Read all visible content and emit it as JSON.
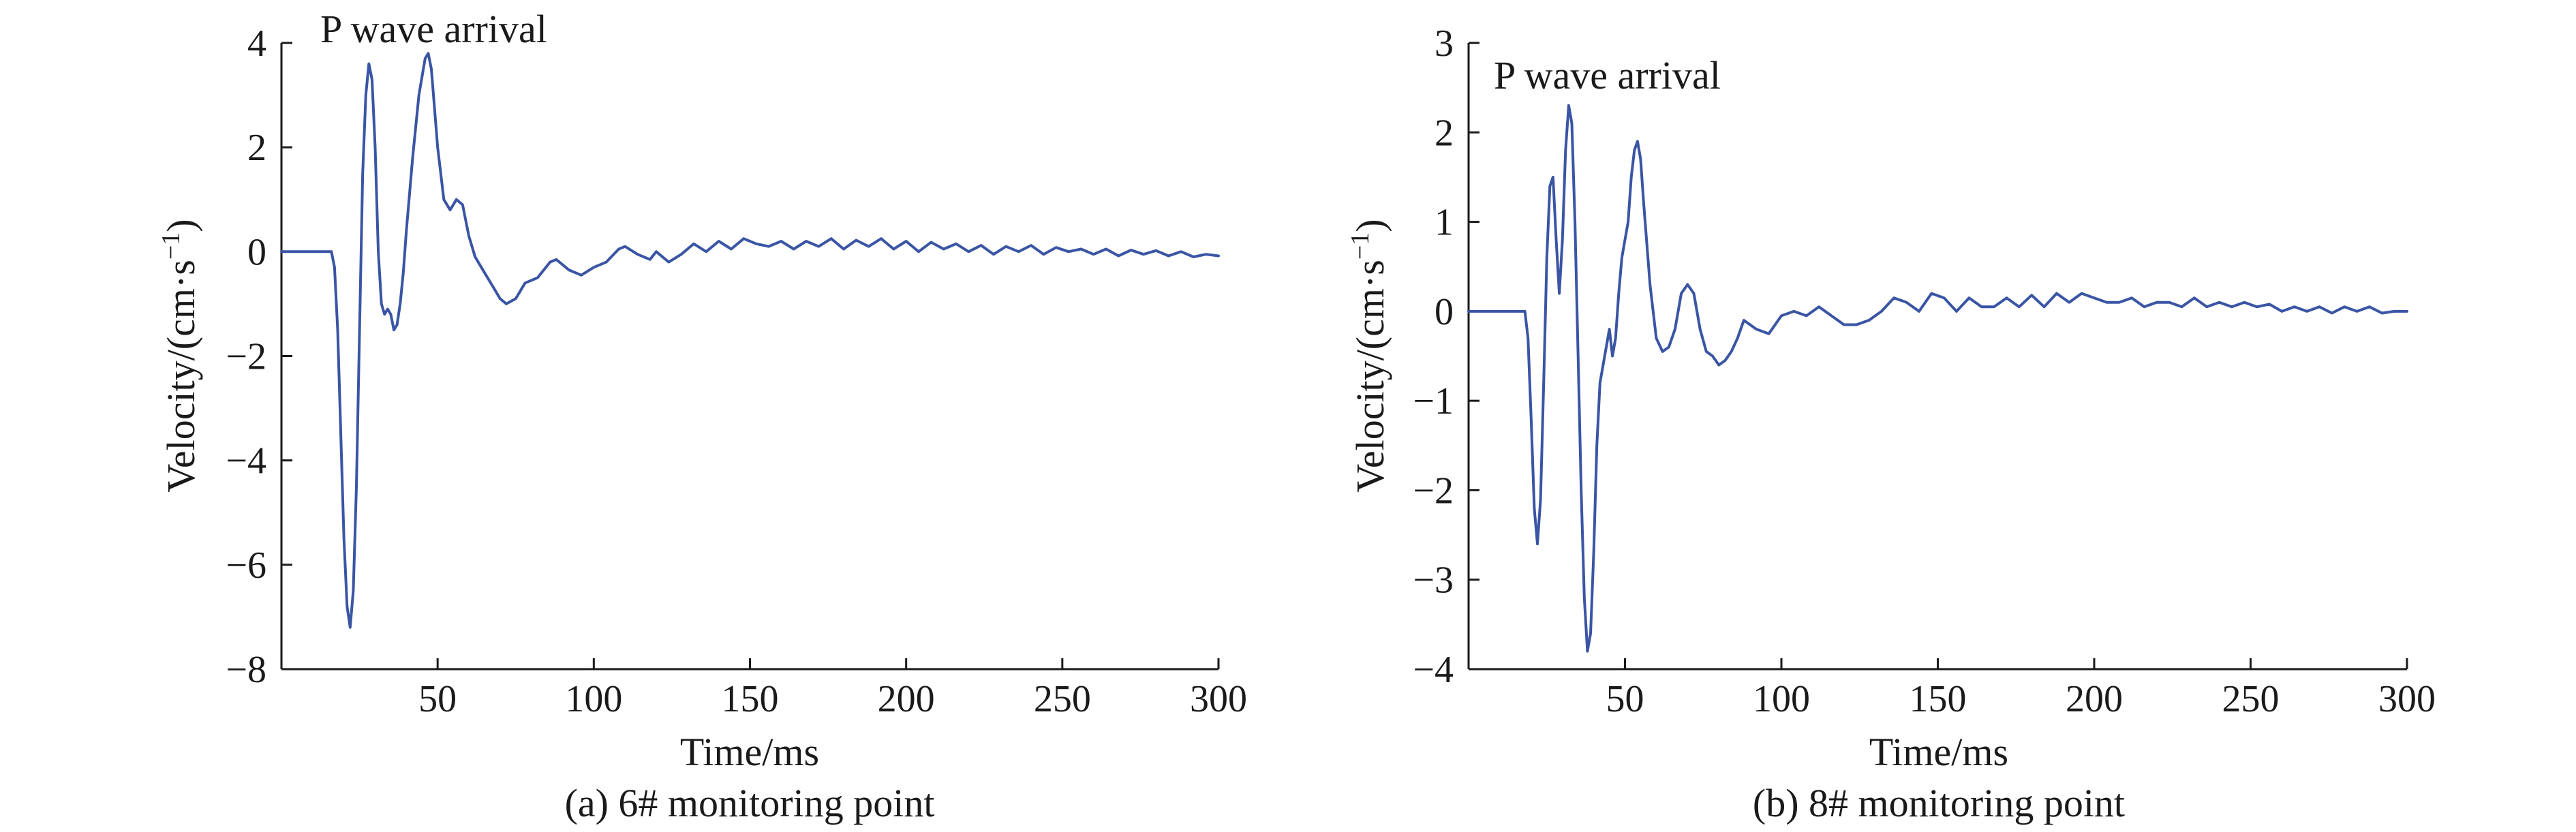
{
  "chart_data": [
    {
      "type": "line",
      "caption": "(a) 6# monitoring point",
      "annotation": "P wave arrival",
      "xlabel": "Time/ms",
      "ylabel": "Velocity/(cm·s",
      "ylabel_sup": "−1",
      "ylabel_tail": ")",
      "xlim": [
        0,
        300
      ],
      "ylim": [
        -8,
        4
      ],
      "xticks": [
        50,
        100,
        150,
        200,
        250,
        300
      ],
      "yticks": [
        -8,
        -6,
        -4,
        -2,
        0,
        2,
        4
      ],
      "xtick_labels": [
        "50",
        "100",
        "150",
        "200",
        "250",
        "300"
      ],
      "ytick_labels": [
        "−8",
        "−6",
        "−4",
        "−2",
        "0",
        "2",
        "4"
      ],
      "grid": false,
      "color": "#3a55a4",
      "series": [
        {
          "x": [
            0,
            10,
            16,
            17,
            18,
            19,
            20,
            21,
            22,
            23,
            24,
            25,
            26,
            27,
            28,
            29,
            30,
            31,
            32,
            33,
            34,
            35,
            36,
            37,
            38,
            39,
            40,
            42,
            44,
            46,
            47,
            48,
            50,
            52,
            54,
            56,
            58,
            60,
            62,
            64,
            66,
            68,
            70,
            72,
            75,
            78,
            82,
            86,
            88,
            92,
            96,
            100,
            104,
            108,
            110,
            114,
            118,
            120,
            124,
            128,
            132,
            136,
            140,
            144,
            148,
            152,
            156,
            160,
            164,
            168,
            172,
            176,
            180,
            184,
            188,
            192,
            196,
            200,
            204,
            208,
            212,
            216,
            220,
            224,
            228,
            232,
            236,
            240,
            244,
            248,
            252,
            256,
            260,
            264,
            268,
            272,
            276,
            280,
            284,
            288,
            292,
            296,
            300
          ],
          "y": [
            0,
            0,
            0,
            -0.3,
            -1.5,
            -3.5,
            -5.5,
            -6.8,
            -7.2,
            -6.5,
            -4.5,
            -1.5,
            1.5,
            3.0,
            3.6,
            3.3,
            2.0,
            0,
            -1.0,
            -1.2,
            -1.1,
            -1.2,
            -1.5,
            -1.4,
            -1.0,
            -0.4,
            0.4,
            1.8,
            3.0,
            3.7,
            3.8,
            3.5,
            2.0,
            1.0,
            0.8,
            1.0,
            0.9,
            0.3,
            -0.1,
            -0.3,
            -0.5,
            -0.7,
            -0.9,
            -1.0,
            -0.9,
            -0.6,
            -0.5,
            -0.2,
            -0.15,
            -0.35,
            -0.45,
            -0.3,
            -0.2,
            0.05,
            0.1,
            -0.05,
            -0.15,
            0.0,
            -0.2,
            -0.05,
            0.15,
            0.0,
            0.2,
            0.05,
            0.25,
            0.15,
            0.1,
            0.2,
            0.05,
            0.2,
            0.1,
            0.25,
            0.05,
            0.22,
            0.1,
            0.25,
            0.05,
            0.2,
            0.0,
            0.18,
            0.05,
            0.15,
            0.0,
            0.12,
            -0.05,
            0.1,
            0.0,
            0.12,
            -0.05,
            0.08,
            0.0,
            0.05,
            -0.05,
            0.05,
            -0.08,
            0.03,
            -0.05,
            0.02,
            -0.08,
            0.0,
            -0.1,
            -0.05,
            -0.08
          ]
        }
      ]
    },
    {
      "type": "line",
      "caption": "(b) 8# monitoring point",
      "annotation": "P wave arrival",
      "xlabel": "Time/ms",
      "ylabel": "Velocity/(cm·s",
      "ylabel_sup": "−1",
      "ylabel_tail": ")",
      "xlim": [
        0,
        300
      ],
      "ylim": [
        -4,
        3
      ],
      "xticks": [
        50,
        100,
        150,
        200,
        250,
        300
      ],
      "yticks": [
        -4,
        -3,
        -2,
        -1,
        0,
        1,
        2,
        3
      ],
      "xtick_labels": [
        "50",
        "100",
        "150",
        "200",
        "250",
        "300"
      ],
      "ytick_labels": [
        "−4",
        "−3",
        "−2",
        "−1",
        "0",
        "1",
        "2",
        "3"
      ],
      "grid": false,
      "color": "#3a55a4",
      "series": [
        {
          "x": [
            0,
            10,
            18,
            19,
            20,
            21,
            22,
            23,
            24,
            25,
            26,
            27,
            28,
            29,
            30,
            31,
            32,
            33,
            34,
            35,
            36,
            37,
            38,
            39,
            40,
            41,
            42,
            43,
            44,
            45,
            46,
            47,
            48,
            49,
            50,
            51,
            52,
            53,
            54,
            55,
            56,
            58,
            60,
            62,
            64,
            66,
            68,
            70,
            72,
            74,
            76,
            78,
            80,
            82,
            84,
            86,
            88,
            92,
            96,
            100,
            104,
            108,
            112,
            116,
            120,
            124,
            128,
            132,
            136,
            140,
            144,
            148,
            152,
            156,
            160,
            164,
            168,
            172,
            176,
            180,
            184,
            188,
            192,
            196,
            200,
            204,
            208,
            212,
            216,
            220,
            224,
            228,
            232,
            236,
            240,
            244,
            248,
            252,
            256,
            260,
            264,
            268,
            272,
            276,
            280,
            284,
            288,
            292,
            296,
            300
          ],
          "y": [
            0,
            0,
            0,
            -0.3,
            -1.2,
            -2.2,
            -2.6,
            -2.1,
            -0.8,
            0.6,
            1.4,
            1.5,
            0.8,
            0.2,
            0.8,
            1.8,
            2.3,
            2.1,
            1.0,
            -0.5,
            -2.0,
            -3.2,
            -3.8,
            -3.6,
            -2.7,
            -1.5,
            -0.8,
            -0.6,
            -0.4,
            -0.2,
            -0.5,
            -0.3,
            0.2,
            0.6,
            0.8,
            1.0,
            1.5,
            1.8,
            1.9,
            1.7,
            1.2,
            0.3,
            -0.3,
            -0.45,
            -0.4,
            -0.2,
            0.2,
            0.3,
            0.2,
            -0.2,
            -0.45,
            -0.5,
            -0.6,
            -0.55,
            -0.45,
            -0.3,
            -0.1,
            -0.2,
            -0.25,
            -0.05,
            0.0,
            -0.05,
            0.05,
            -0.05,
            -0.15,
            -0.15,
            -0.1,
            0.0,
            0.15,
            0.1,
            0.0,
            0.2,
            0.15,
            0.0,
            0.15,
            0.05,
            0.05,
            0.15,
            0.05,
            0.18,
            0.05,
            0.2,
            0.1,
            0.2,
            0.15,
            0.1,
            0.1,
            0.15,
            0.05,
            0.1,
            0.1,
            0.05,
            0.15,
            0.05,
            0.1,
            0.05,
            0.1,
            0.05,
            0.08,
            0.0,
            0.05,
            0.0,
            0.05,
            -0.02,
            0.05,
            0.0,
            0.05,
            -0.02,
            0.0,
            0.0
          ]
        }
      ]
    }
  ]
}
